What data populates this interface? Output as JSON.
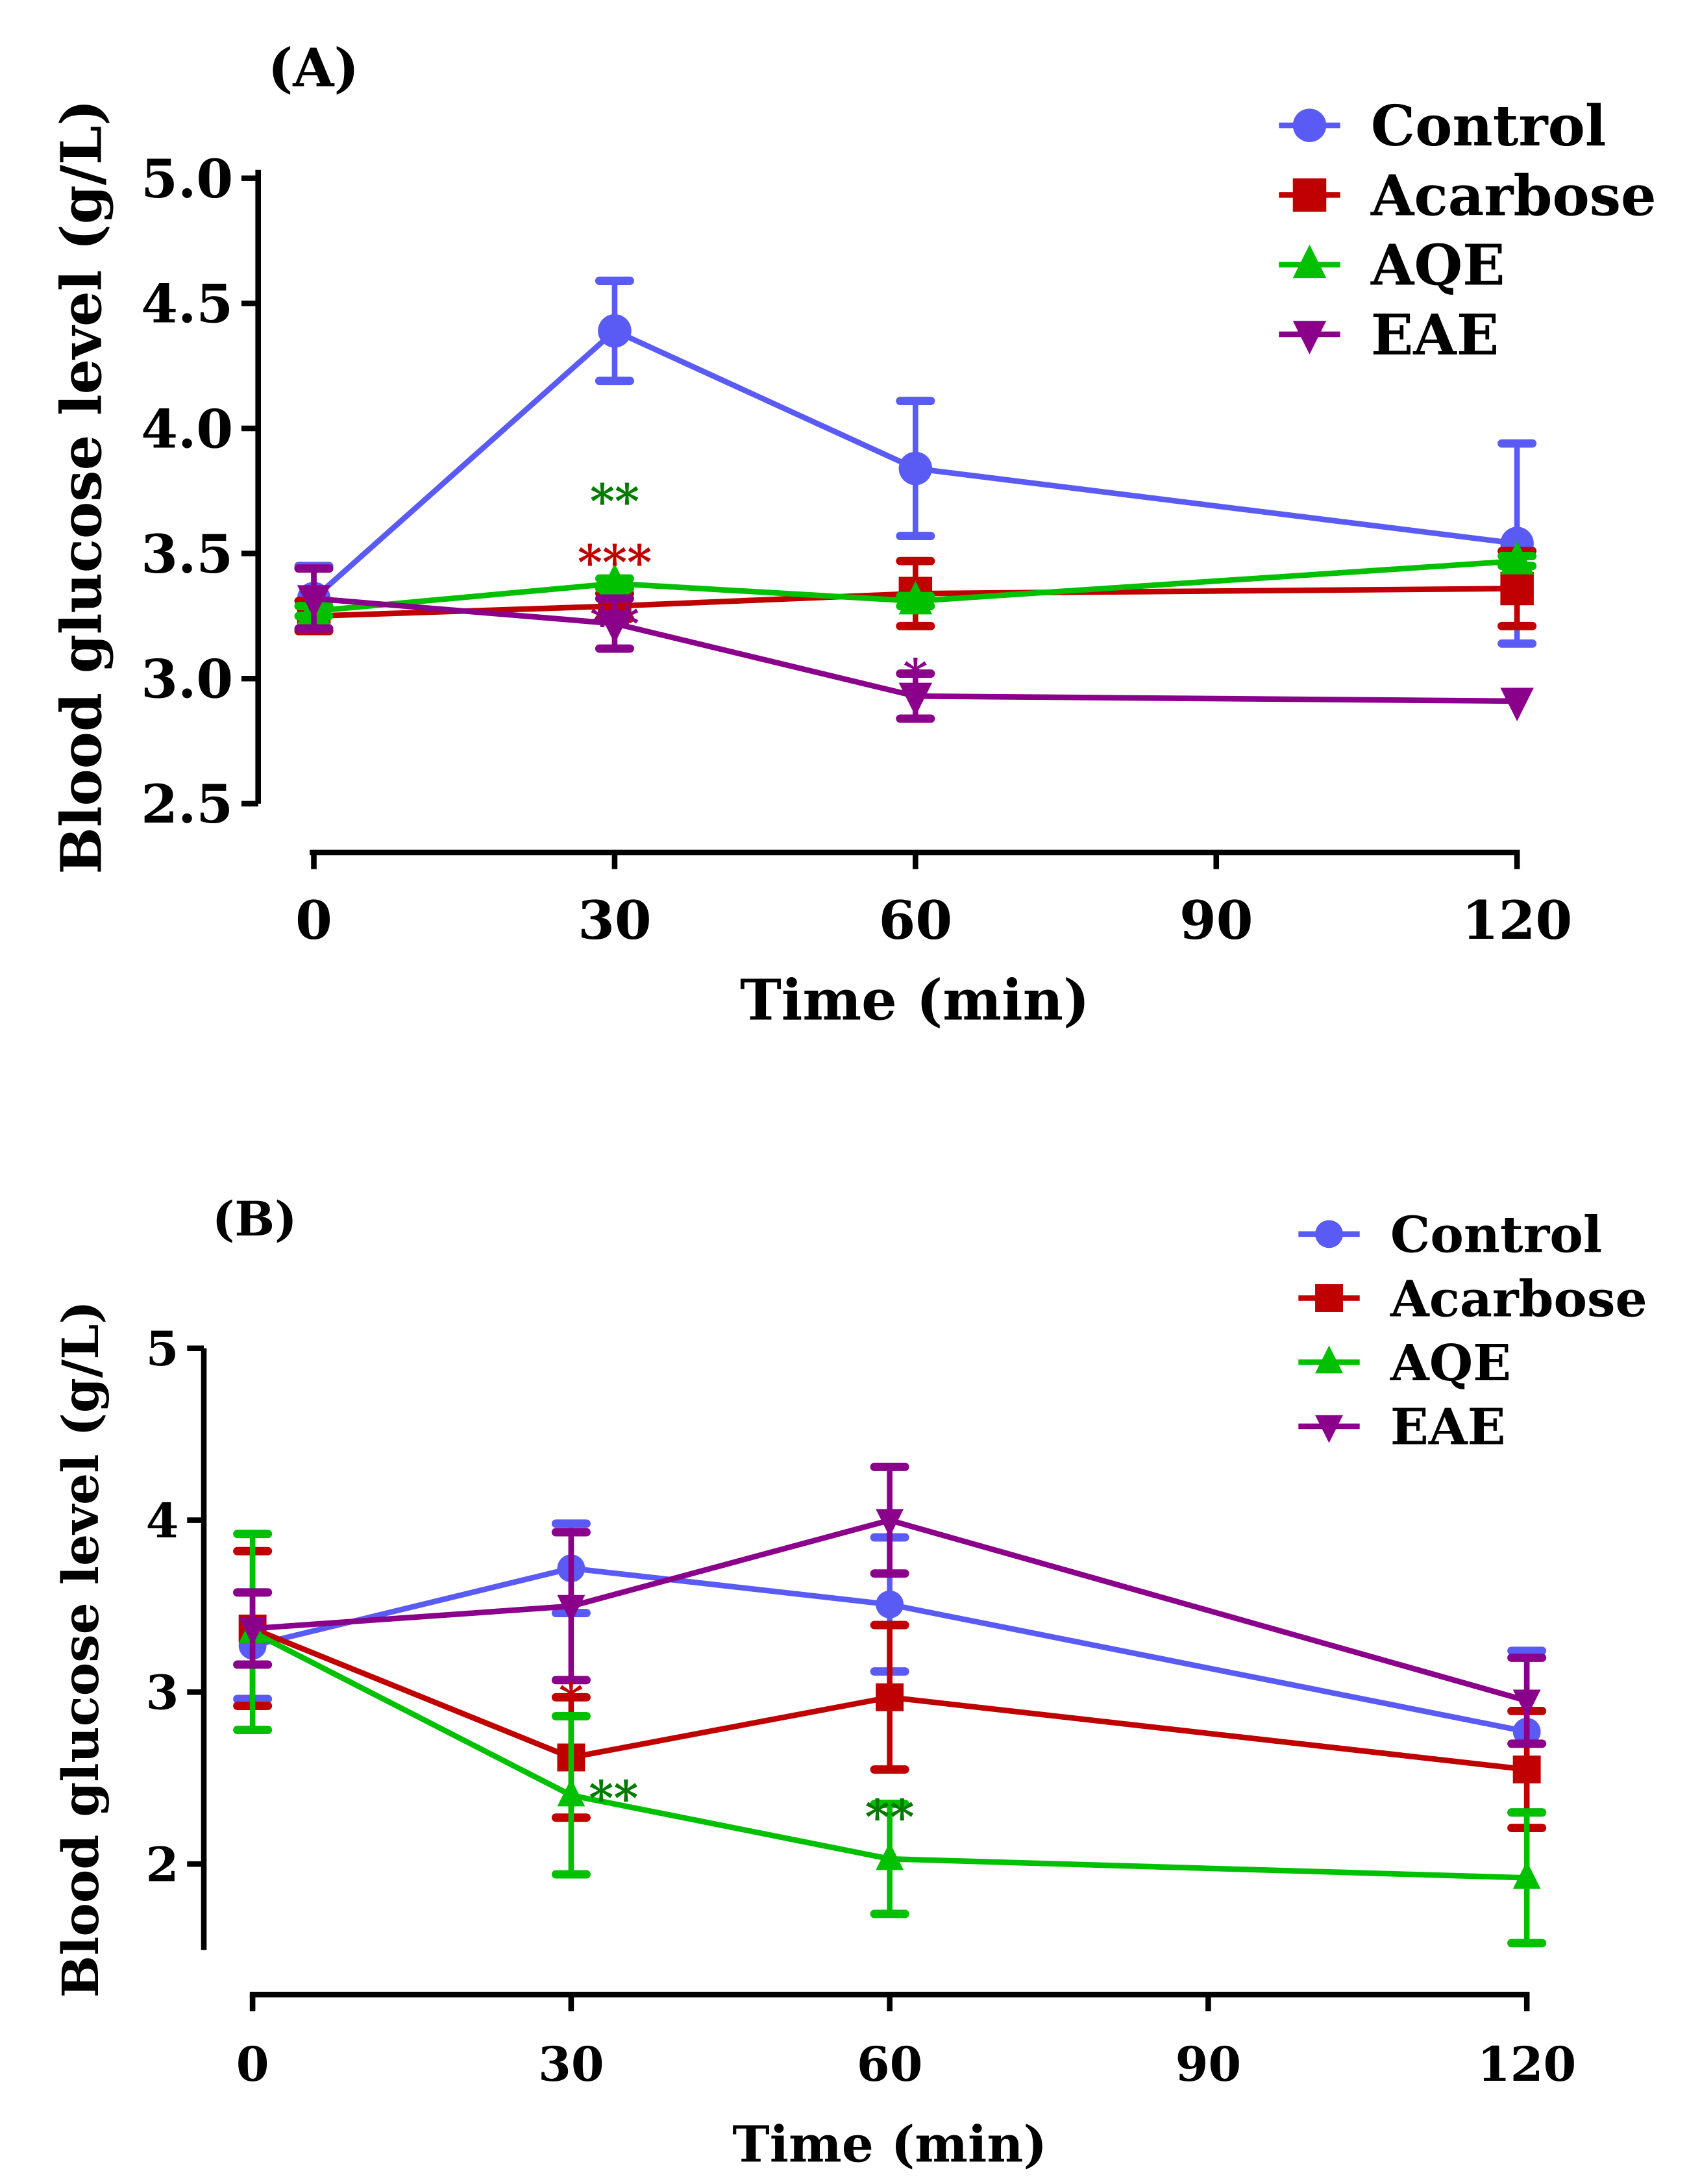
{
  "chart_data": [
    {
      "panel_label": "(A)",
      "type": "line",
      "xlabel": "Time (min)",
      "ylabel": "Blood glucose level (g/L)",
      "x": [
        0,
        30,
        60,
        120
      ],
      "xticks": [
        "0",
        "30",
        "60",
        "90",
        "120"
      ],
      "xtick_values": [
        0,
        30,
        60,
        90,
        120
      ],
      "ylim": [
        2.5,
        5.0
      ],
      "yticks": [
        "2.5",
        "3.0",
        "3.5",
        "4.0",
        "4.5",
        "5.0"
      ],
      "ytick_values": [
        2.5,
        3.0,
        3.5,
        4.0,
        4.5,
        5.0
      ],
      "legend_placement": "top-right",
      "series": [
        {
          "name": "Control",
          "color": "#5a5af5",
          "marker": "circle",
          "values": [
            3.32,
            4.39,
            3.84,
            3.54
          ],
          "err": [
            0.13,
            0.2,
            0.27,
            0.4
          ]
        },
        {
          "name": "Acarbose",
          "color": "#c00000",
          "marker": "square",
          "values": [
            3.25,
            3.29,
            3.34,
            3.36
          ],
          "err": [
            0.06,
            0.05,
            0.13,
            0.15
          ]
        },
        {
          "name": "AQE",
          "color": "#00c000",
          "marker": "triangle-up",
          "values": [
            3.27,
            3.38,
            3.31,
            3.47
          ],
          "err": [
            0.02,
            0.02,
            0.02,
            0.02
          ]
        },
        {
          "name": "EAE",
          "color": "#8b008b",
          "marker": "triangle-down",
          "values": [
            3.32,
            3.22,
            2.93,
            2.91
          ],
          "err": [
            0.12,
            0.1,
            0.09,
            0.0
          ]
        }
      ],
      "annotations": [
        {
          "text": "**",
          "x": 30,
          "y": 3.72,
          "color": "#007a00"
        },
        {
          "text": "***",
          "x": 30,
          "y": 3.58,
          "color": "#c00000"
        },
        {
          "text": "**",
          "x": 30,
          "y": 3.45,
          "color": "#8b008b"
        },
        {
          "text": "*",
          "x": 60,
          "y": 3.02,
          "color": "#8b008b"
        }
      ]
    },
    {
      "panel_label": "(B)",
      "type": "line",
      "xlabel": "Time (min)",
      "ylabel": "Blood glucose level (g/L)",
      "x": [
        0,
        30,
        60,
        120
      ],
      "xticks": [
        "0",
        "30",
        "60",
        "90",
        "120"
      ],
      "xtick_values": [
        0,
        30,
        60,
        90,
        120
      ],
      "ylim": [
        1.5,
        5
      ],
      "yticks": [
        "2",
        "3",
        "4",
        "5"
      ],
      "ytick_values": [
        2,
        3,
        4,
        5
      ],
      "legend_placement": "top-right",
      "series": [
        {
          "name": "Control",
          "color": "#5a5af5",
          "marker": "circle",
          "values": [
            3.27,
            3.72,
            3.51,
            2.77
          ],
          "err": [
            0.31,
            0.26,
            0.39,
            0.47
          ]
        },
        {
          "name": "Acarbose",
          "color": "#c00000",
          "marker": "square",
          "values": [
            3.37,
            2.62,
            2.97,
            2.55
          ],
          "err": [
            0.45,
            0.35,
            0.42,
            0.34
          ]
        },
        {
          "name": "AQE",
          "color": "#00c000",
          "marker": "triangle-up",
          "values": [
            3.35,
            2.4,
            2.03,
            1.92
          ],
          "err": [
            0.57,
            0.46,
            0.32,
            0.38
          ]
        },
        {
          "name": "EAE",
          "color": "#8b008b",
          "marker": "triangle-down",
          "values": [
            3.37,
            3.5,
            4.0,
            2.95
          ],
          "err": [
            0.21,
            0.43,
            0.31,
            0.25
          ]
        }
      ],
      "annotations": [
        {
          "text": "*",
          "x": 30,
          "y": 2.97,
          "color": "#c00000"
        },
        {
          "text": "**",
          "x": 34,
          "y": 2.4,
          "color": "#007a00"
        },
        {
          "text": "**",
          "x": 60,
          "y": 2.29,
          "color": "#007a00"
        }
      ]
    }
  ]
}
